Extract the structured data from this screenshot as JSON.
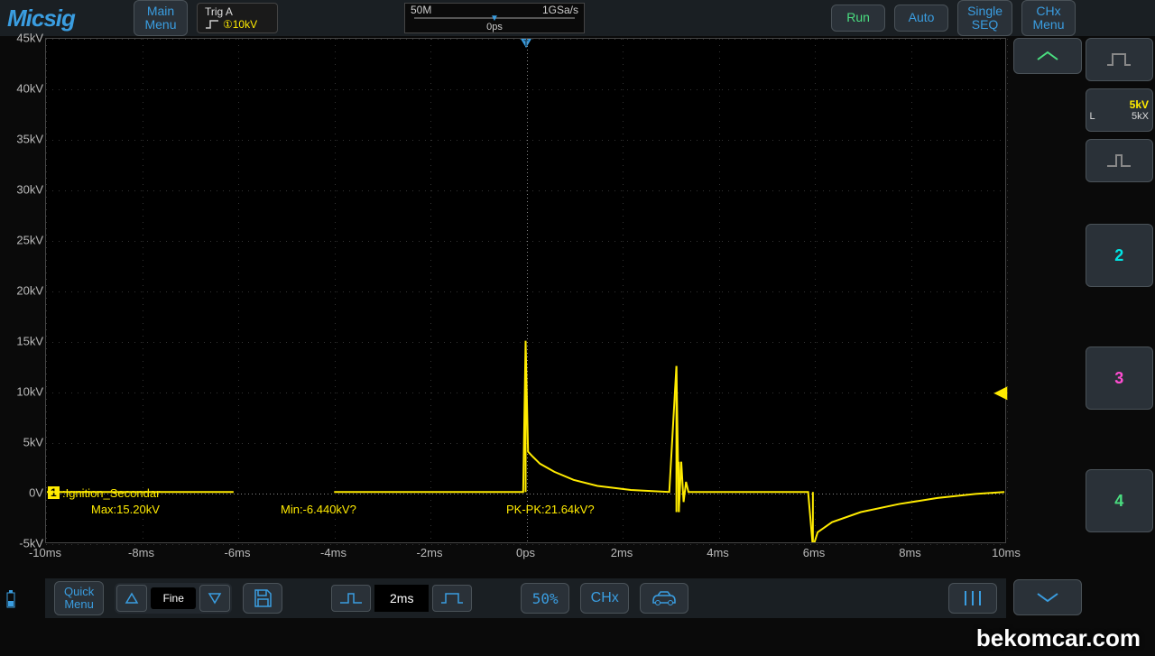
{
  "brand": "Micsig",
  "topbar": {
    "main_menu": "Main\nMenu",
    "trigger": {
      "label": "Trig A",
      "value": "①10kV"
    },
    "timebase": {
      "left": "50M",
      "right": "1GSa/s",
      "center": "0ps"
    },
    "run": "Run",
    "auto": "Auto",
    "single": "Single\nSEQ",
    "chx_menu": "CHx\nMenu"
  },
  "yaxis": {
    "labels": [
      "45kV",
      "40kV",
      "35kV",
      "30kV",
      "25kV",
      "20kV",
      "15kV",
      "10kV",
      "5kV",
      "0V",
      "-5kV"
    ],
    "min": -5,
    "max": 45,
    "step": 5
  },
  "xaxis": {
    "labels": [
      "-10ms",
      "-8ms",
      "-6ms",
      "-4ms",
      "-2ms",
      "0ps",
      "2ms",
      "4ms",
      "6ms",
      "8ms",
      "10ms"
    ],
    "min": -10,
    "max": 10,
    "step": 2
  },
  "channel1": {
    "tag": "1",
    "name": ":Ignition_Secondar",
    "measurements": {
      "max": "Max:15.20kV",
      "min": "Min:-6.440kV?",
      "pkpk": "PK-PK:21.64kV?"
    },
    "color": "#ffeb00"
  },
  "right": {
    "ch_info": {
      "value": "5kV",
      "probe": "5kX",
      "prefix": "L"
    },
    "ch2": "2",
    "ch3": "3",
    "ch4": "4"
  },
  "bottombar": {
    "quick_menu": "Quick\nMenu",
    "fine": "Fine",
    "time_value": "2ms",
    "pct": "50%",
    "chx": "CHx"
  },
  "trigger_level_kv": 10,
  "zero_level_kv": 0,
  "colors": {
    "bg": "#0a0a0a",
    "panel": "#2a3138",
    "border": "#4a5258",
    "accent": "#3a9de0",
    "trace": "#ffeb00",
    "run": "#4ade80",
    "ch2": "#00e5e5",
    "ch3": "#ff4dd2",
    "ch4": "#4ade80",
    "grid": "#333333"
  },
  "waveform": {
    "type": "oscilloscope-trace",
    "description": "Ignition secondary waveform: baseline ~0kV from -10ms to ~-6ms, drops away (gap) -6 to -4ms, resumes flat 0 to 0ms, large firing spike at 0ms rising to ~15kV then ringing burn line decaying 0 to 3ms, second narrower spike ~3.2ms to ~12kV, flat to ~6ms, negative dip to ~-5kV at 6ms with exponential recovery back to 0 by 10ms",
    "points_ms_kv": [
      [
        -10,
        0
      ],
      [
        -6.1,
        0
      ],
      [
        -6.0,
        null
      ],
      [
        -4.1,
        null
      ],
      [
        -4.0,
        0
      ],
      [
        -0.05,
        0
      ],
      [
        0,
        15
      ],
      [
        0.05,
        4
      ],
      [
        0.15,
        3.5
      ],
      [
        0.3,
        2.8
      ],
      [
        0.6,
        2
      ],
      [
        1.0,
        1.2
      ],
      [
        1.5,
        0.6
      ],
      [
        2.2,
        0.2
      ],
      [
        3.0,
        0
      ],
      [
        3.15,
        12.5
      ],
      [
        3.2,
        -2
      ],
      [
        3.25,
        3
      ],
      [
        3.3,
        -1
      ],
      [
        3.35,
        1
      ],
      [
        3.4,
        0
      ],
      [
        5.9,
        0
      ],
      [
        6.0,
        -5.5
      ],
      [
        6.1,
        -4
      ],
      [
        6.4,
        -3
      ],
      [
        7.0,
        -2
      ],
      [
        7.8,
        -1.2
      ],
      [
        8.6,
        -0.6
      ],
      [
        9.4,
        -0.2
      ],
      [
        10,
        0
      ]
    ]
  },
  "watermark": "bekomcar.com"
}
